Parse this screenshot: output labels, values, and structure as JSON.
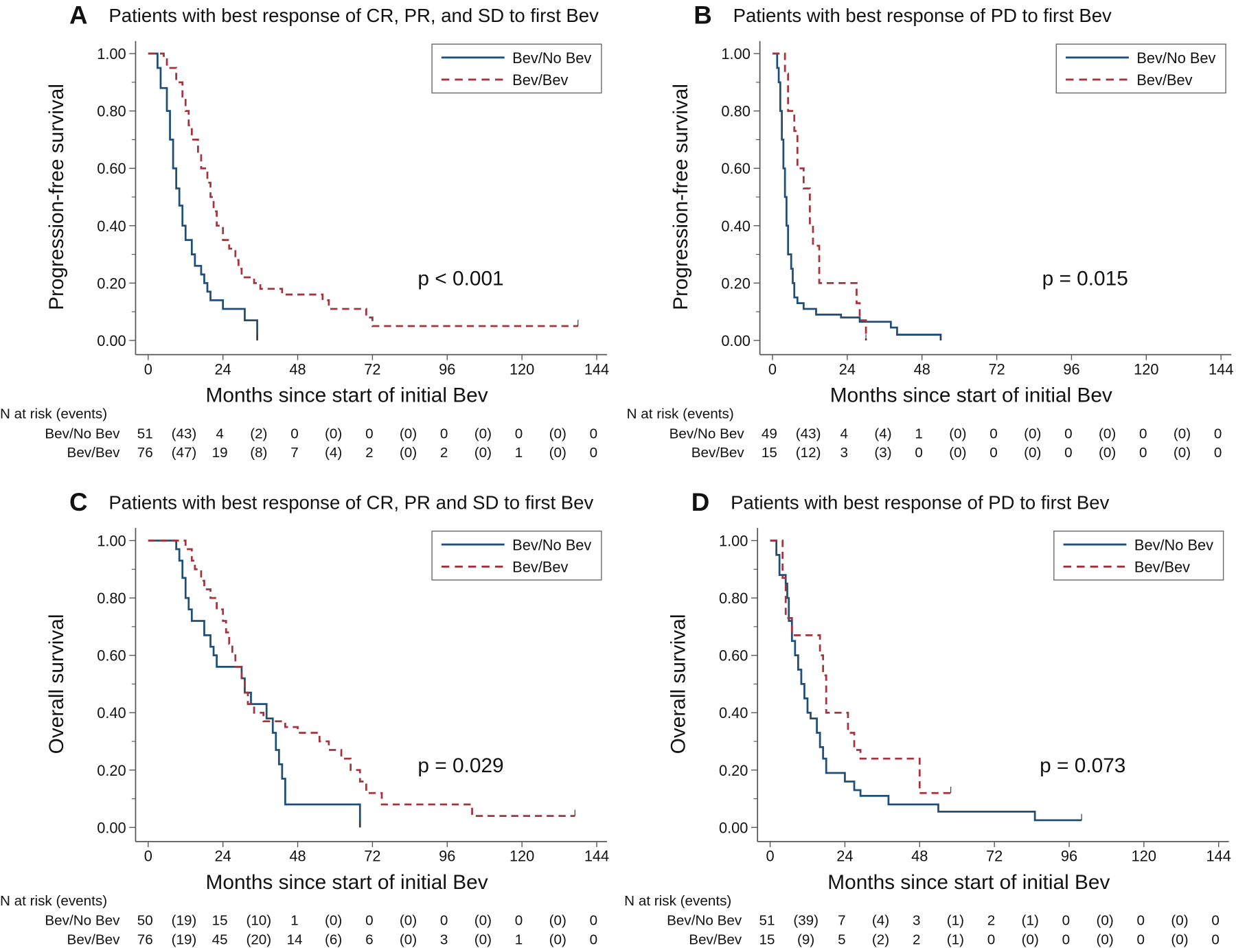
{
  "colors": {
    "no_bev": "#1f4e79",
    "bev": "#a3333d",
    "axis": "#555555"
  },
  "risk_header": "N at risk (events)",
  "legend": {
    "no_bev": "Bev/No Bev",
    "bev": "Bev/Bev"
  },
  "chart_data": [
    {
      "letter": "A",
      "type": "line",
      "title": "Patients with best response of CR, PR, and SD to first Bev",
      "xlabel": "Months since start of initial Bev",
      "ylabel": "Progression-free survival",
      "xlim": [
        0,
        144
      ],
      "ylim": [
        0,
        1
      ],
      "xticks": [
        "0",
        "24",
        "48",
        "72",
        "96",
        "120",
        "144"
      ],
      "yticks": [
        "0.00",
        "0.20",
        "0.40",
        "0.60",
        "0.80",
        "1.00"
      ],
      "legend_position": "top-right",
      "annotation": "p < 0.001",
      "series": [
        {
          "name": "Bev/No Bev",
          "style": "solid",
          "points": [
            [
              0,
              1
            ],
            [
              3,
              0.95
            ],
            [
              4,
              0.88
            ],
            [
              6,
              0.8
            ],
            [
              7,
              0.7
            ],
            [
              8,
              0.6
            ],
            [
              9,
              0.53
            ],
            [
              10,
              0.47
            ],
            [
              11,
              0.4
            ],
            [
              12,
              0.35
            ],
            [
              14,
              0.3
            ],
            [
              15,
              0.26
            ],
            [
              17,
              0.23
            ],
            [
              18,
              0.2
            ],
            [
              19,
              0.17
            ],
            [
              20,
              0.14
            ],
            [
              24,
              0.11
            ],
            [
              31,
              0.07
            ],
            [
              35,
              0
            ]
          ]
        },
        {
          "name": "Bev/Bev",
          "style": "dashed",
          "points": [
            [
              0,
              1
            ],
            [
              5,
              0.98
            ],
            [
              6,
              0.95
            ],
            [
              9,
              0.9
            ],
            [
              11,
              0.85
            ],
            [
              12,
              0.8
            ],
            [
              13,
              0.75
            ],
            [
              14,
              0.7
            ],
            [
              16,
              0.65
            ],
            [
              17,
              0.6
            ],
            [
              19,
              0.55
            ],
            [
              20,
              0.5
            ],
            [
              21,
              0.45
            ],
            [
              22,
              0.4
            ],
            [
              24,
              0.35
            ],
            [
              26,
              0.32
            ],
            [
              28,
              0.28
            ],
            [
              29,
              0.25
            ],
            [
              30,
              0.22
            ],
            [
              34,
              0.2
            ],
            [
              36,
              0.18
            ],
            [
              43,
              0.16
            ],
            [
              56,
              0.14
            ],
            [
              58,
              0.11
            ],
            [
              70,
              0.08
            ],
            [
              72,
              0.05
            ],
            [
              138,
              0.05
            ]
          ]
        }
      ],
      "risk": [
        {
          "label": "Bev/No Bev",
          "n": [
            "51",
            "4",
            "0",
            "0",
            "0",
            "0",
            "0"
          ],
          "events": [
            "(43)",
            "(2)",
            "(0)",
            "(0)",
            "(0)",
            "(0)"
          ]
        },
        {
          "label": "Bev/Bev",
          "n": [
            "76",
            "19",
            "7",
            "2",
            "2",
            "1",
            "0"
          ],
          "events": [
            "(47)",
            "(8)",
            "(4)",
            "(0)",
            "(0)",
            "(0)"
          ]
        }
      ]
    },
    {
      "letter": "B",
      "type": "line",
      "title": "Patients with best response of PD to first Bev",
      "xlabel": "Months since start of initial Bev",
      "ylabel": "Progression-free survival",
      "xlim": [
        0,
        144
      ],
      "ylim": [
        0,
        1
      ],
      "xticks": [
        "0",
        "24",
        "48",
        "72",
        "96",
        "120",
        "144"
      ],
      "yticks": [
        "0.00",
        "0.20",
        "0.40",
        "0.60",
        "0.80",
        "1.00"
      ],
      "legend_position": "top-right",
      "annotation": "p = 0.015",
      "series": [
        {
          "name": "Bev/No Bev",
          "style": "solid",
          "points": [
            [
              0,
              1
            ],
            [
              1.5,
              0.95
            ],
            [
              2,
              0.9
            ],
            [
              2.5,
              0.8
            ],
            [
              3,
              0.7
            ],
            [
              3.5,
              0.6
            ],
            [
              4,
              0.5
            ],
            [
              4.5,
              0.4
            ],
            [
              5,
              0.3
            ],
            [
              6,
              0.25
            ],
            [
              6.5,
              0.2
            ],
            [
              7,
              0.15
            ],
            [
              8,
              0.13
            ],
            [
              10,
              0.11
            ],
            [
              14,
              0.09
            ],
            [
              22,
              0.08
            ],
            [
              28,
              0.065
            ],
            [
              38,
              0.045
            ],
            [
              40,
              0.02
            ],
            [
              54,
              0.02
            ],
            [
              54,
              0
            ]
          ]
        },
        {
          "name": "Bev/Bev",
          "style": "dashed",
          "points": [
            [
              0,
              1
            ],
            [
              4,
              0.93
            ],
            [
              5,
              0.8
            ],
            [
              7,
              0.73
            ],
            [
              8,
              0.6
            ],
            [
              10,
              0.53
            ],
            [
              12,
              0.4
            ],
            [
              13,
              0.33
            ],
            [
              15,
              0.2
            ],
            [
              27,
              0.13
            ],
            [
              28,
              0.07
            ],
            [
              30,
              0
            ]
          ]
        }
      ],
      "risk": [
        {
          "label": "Bev/No Bev",
          "n": [
            "49",
            "4",
            "1",
            "0",
            "0",
            "0",
            "0"
          ],
          "events": [
            "(43)",
            "(4)",
            "(0)",
            "(0)",
            "(0)",
            "(0)"
          ]
        },
        {
          "label": "Bev/Bev",
          "n": [
            "15",
            "3",
            "0",
            "0",
            "0",
            "0",
            "0"
          ],
          "events": [
            "(12)",
            "(3)",
            "(0)",
            "(0)",
            "(0)",
            "(0)"
          ]
        }
      ]
    },
    {
      "letter": "C",
      "type": "line",
      "title": "Patients with best response of CR, PR and SD to first Bev",
      "xlabel": "Months since start of initial Bev",
      "ylabel": "Overall survival",
      "xlim": [
        0,
        144
      ],
      "ylim": [
        0,
        1
      ],
      "xticks": [
        "0",
        "24",
        "48",
        "72",
        "96",
        "120",
        "144"
      ],
      "yticks": [
        "0.00",
        "0.20",
        "0.40",
        "0.60",
        "0.80",
        "1.00"
      ],
      "legend_position": "top-right",
      "annotation": "p = 0.029",
      "series": [
        {
          "name": "Bev/No Bev",
          "style": "solid",
          "points": [
            [
              0,
              1
            ],
            [
              9,
              0.97
            ],
            [
              10,
              0.93
            ],
            [
              11,
              0.87
            ],
            [
              12,
              0.8
            ],
            [
              13,
              0.76
            ],
            [
              14,
              0.72
            ],
            [
              18,
              0.67
            ],
            [
              20,
              0.63
            ],
            [
              21,
              0.6
            ],
            [
              22,
              0.56
            ],
            [
              30,
              0.52
            ],
            [
              31,
              0.47
            ],
            [
              33,
              0.43
            ],
            [
              38,
              0.38
            ],
            [
              40,
              0.33
            ],
            [
              41,
              0.27
            ],
            [
              42,
              0.22
            ],
            [
              43,
              0.17
            ],
            [
              44,
              0.08
            ],
            [
              68,
              0.08
            ],
            [
              68,
              0
            ]
          ]
        },
        {
          "name": "Bev/Bev",
          "style": "dashed",
          "points": [
            [
              0,
              1
            ],
            [
              12,
              0.97
            ],
            [
              14,
              0.93
            ],
            [
              15,
              0.9
            ],
            [
              17,
              0.86
            ],
            [
              18,
              0.83
            ],
            [
              20,
              0.8
            ],
            [
              22,
              0.76
            ],
            [
              24,
              0.72
            ],
            [
              25,
              0.68
            ],
            [
              26,
              0.64
            ],
            [
              27,
              0.6
            ],
            [
              28,
              0.56
            ],
            [
              30,
              0.52
            ],
            [
              31,
              0.47
            ],
            [
              32,
              0.43
            ],
            [
              34,
              0.4
            ],
            [
              37,
              0.37
            ],
            [
              44,
              0.35
            ],
            [
              48,
              0.33
            ],
            [
              55,
              0.3
            ],
            [
              58,
              0.27
            ],
            [
              62,
              0.24
            ],
            [
              65,
              0.2
            ],
            [
              68,
              0.16
            ],
            [
              70,
              0.12
            ],
            [
              75,
              0.08
            ],
            [
              104,
              0.04
            ],
            [
              137,
              0.04
            ]
          ]
        }
      ],
      "risk": [
        {
          "label": "Bev/No Bev",
          "n": [
            "50",
            "15",
            "1",
            "0",
            "0",
            "0",
            "0"
          ],
          "events": [
            "(19)",
            "(10)",
            "(0)",
            "(0)",
            "(0)",
            "(0)"
          ]
        },
        {
          "label": "Bev/Bev",
          "n": [
            "76",
            "45",
            "14",
            "6",
            "3",
            "1",
            "0"
          ],
          "events": [
            "(19)",
            "(20)",
            "(6)",
            "(0)",
            "(0)",
            "(0)"
          ]
        }
      ]
    },
    {
      "letter": "D",
      "type": "line",
      "title": "Patients with best response of PD to first Bev",
      "xlabel": "Months since start of initial Bev",
      "ylabel": "Overall survival",
      "xlim": [
        0,
        144
      ],
      "ylim": [
        0,
        1
      ],
      "xticks": [
        "0",
        "24",
        "48",
        "72",
        "96",
        "120",
        "144"
      ],
      "yticks": [
        "0.00",
        "0.20",
        "0.40",
        "0.60",
        "0.80",
        "1.00"
      ],
      "legend_position": "top-right",
      "annotation": "p = 0.073",
      "series": [
        {
          "name": "Bev/No Bev",
          "style": "solid",
          "points": [
            [
              0,
              1
            ],
            [
              2,
              0.95
            ],
            [
              3,
              0.88
            ],
            [
              5,
              0.85
            ],
            [
              5.5,
              0.8
            ],
            [
              6,
              0.72
            ],
            [
              7,
              0.65
            ],
            [
              8,
              0.6
            ],
            [
              9,
              0.55
            ],
            [
              10,
              0.5
            ],
            [
              11,
              0.45
            ],
            [
              12,
              0.4
            ],
            [
              13,
              0.38
            ],
            [
              15,
              0.33
            ],
            [
              16,
              0.28
            ],
            [
              17,
              0.24
            ],
            [
              18,
              0.19
            ],
            [
              24,
              0.16
            ],
            [
              27,
              0.13
            ],
            [
              29,
              0.11
            ],
            [
              38,
              0.08
            ],
            [
              54,
              0.055
            ],
            [
              85,
              0.025
            ],
            [
              100,
              0.025
            ]
          ]
        },
        {
          "name": "Bev/Bev",
          "style": "dashed",
          "points": [
            [
              0,
              1
            ],
            [
              4,
              0.87
            ],
            [
              5,
              0.73
            ],
            [
              7,
              0.67
            ],
            [
              16,
              0.6
            ],
            [
              17,
              0.53
            ],
            [
              18,
              0.4
            ],
            [
              25,
              0.33
            ],
            [
              27,
              0.27
            ],
            [
              29,
              0.24
            ],
            [
              48,
              0.12
            ],
            [
              58,
              0.12
            ]
          ]
        }
      ],
      "risk": [
        {
          "label": "Bev/No Bev",
          "n": [
            "51",
            "7",
            "3",
            "2",
            "0",
            "0",
            "0"
          ],
          "events": [
            "(39)",
            "(4)",
            "(1)",
            "(1)",
            "(0)",
            "(0)"
          ]
        },
        {
          "label": "Bev/Bev",
          "n": [
            "15",
            "5",
            "2",
            "0",
            "0",
            "0",
            "0"
          ],
          "events": [
            "(9)",
            "(2)",
            "(1)",
            "(0)",
            "(0)",
            "(0)"
          ]
        }
      ]
    }
  ]
}
